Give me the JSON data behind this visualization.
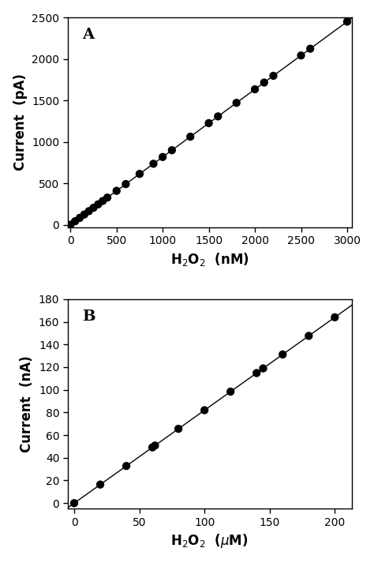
{
  "panel_A": {
    "label": "A",
    "x_data": [
      0,
      50,
      100,
      150,
      200,
      250,
      300,
      350,
      400,
      500,
      600,
      750,
      900,
      1000,
      1100,
      1300,
      1500,
      1600,
      1800,
      2000,
      2100,
      2200,
      2500,
      2600,
      3000
    ],
    "slope": 0.8167,
    "fit_x": [
      -30,
      3050
    ],
    "xlabel": "H$_2$O$_2$  (nM)",
    "ylabel": "Current  (pA)",
    "xlim": [
      -30,
      3050
    ],
    "ylim": [
      -30,
      2500
    ],
    "xticks": [
      0,
      500,
      1000,
      1500,
      2000,
      2500,
      3000
    ],
    "yticks": [
      0,
      500,
      1000,
      1500,
      2000,
      2500
    ]
  },
  "panel_B": {
    "label": "B",
    "x_data": [
      0,
      20,
      40,
      60,
      62,
      80,
      100,
      120,
      140,
      145,
      160,
      180,
      200
    ],
    "slope": 0.82,
    "fit_x": [
      -5,
      213
    ],
    "xlabel": "H$_2$O$_2$  ($\\mu$M)",
    "ylabel": "Current  (nA)",
    "xlim": [
      -5,
      213
    ],
    "ylim": [
      -5,
      180
    ],
    "xticks": [
      0,
      50,
      100,
      150,
      200
    ],
    "yticks": [
      0,
      20,
      40,
      60,
      80,
      100,
      120,
      140,
      160,
      180
    ]
  },
  "dot_color": "#000000",
  "line_color": "#000000",
  "dot_size": 55,
  "background_color": "#ffffff",
  "axes_background": "#ffffff"
}
